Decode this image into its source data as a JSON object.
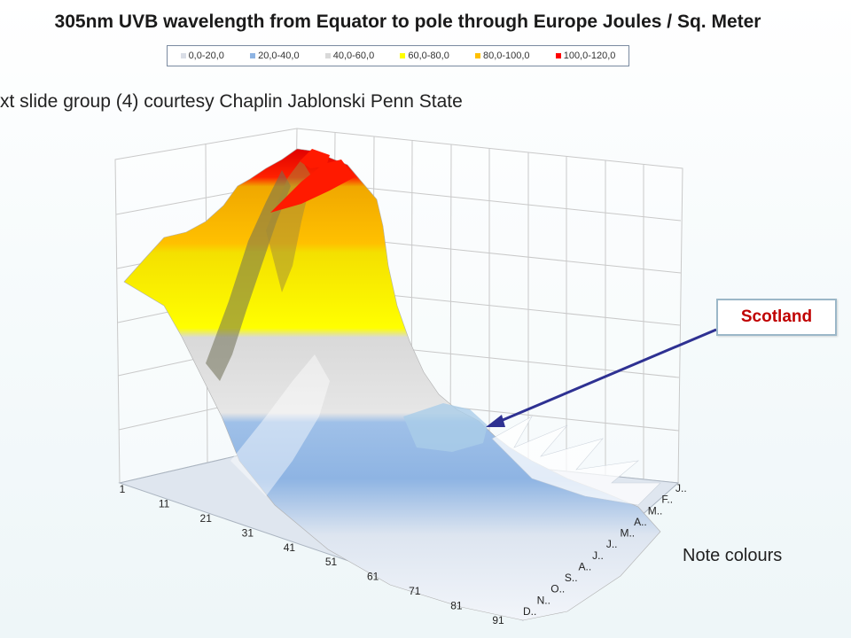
{
  "slide": {
    "title": "305nm UVB wavelength from Equator to pole through Europe Joules / Sq. Meter",
    "subtitle": "xt slide group (4) courtesy Chaplin Jablonski Penn State",
    "callout": "Scotland",
    "note": "Note colours"
  },
  "chart_data": {
    "type": "surface",
    "title": "305nm UVB wavelength from Equator to pole through Europe Joules / Sq. Meter",
    "legend_position": "top",
    "legend": [
      {
        "label": "0,0-20,0",
        "color": "#d9dde6"
      },
      {
        "label": "20,0-40,0",
        "color": "#8eb4e3"
      },
      {
        "label": "40,0-60,0",
        "color": "#d9d9d9"
      },
      {
        "label": "60,0-80,0",
        "color": "#ffff00"
      },
      {
        "label": "80,0-100,0",
        "color": "#ffc000"
      },
      {
        "label": "100,0-120,0",
        "color": "#ff0000"
      }
    ],
    "x_ticks": [
      "1",
      "11",
      "21",
      "31",
      "41",
      "51",
      "61",
      "71",
      "81",
      "91"
    ],
    "y_ticks": [
      "J..",
      "F..",
      "M..",
      "A..",
      "M..",
      "J..",
      "J..",
      "A..",
      "S..",
      "O..",
      "N..",
      "D.."
    ],
    "grid": true,
    "zlim": [
      0,
      120
    ]
  }
}
